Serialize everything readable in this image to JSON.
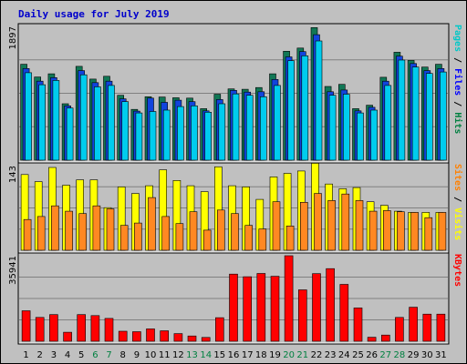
{
  "chart_data": {
    "type": "bar",
    "title": "Daily usage for July 2019",
    "x": [
      "1",
      "2",
      "3",
      "4",
      "5",
      "6",
      "7",
      "8",
      "9",
      "10",
      "11",
      "12",
      "13",
      "14",
      "15",
      "16",
      "17",
      "18",
      "19",
      "20",
      "21",
      "22",
      "23",
      "24",
      "25",
      "26",
      "27",
      "28",
      "29",
      "30",
      "31"
    ],
    "weekend_days": [
      "6",
      "7",
      "13",
      "14",
      "20",
      "21",
      "27",
      "28"
    ],
    "panels": [
      {
        "id": "hits",
        "ymax": 1897,
        "ymax_label": "1897",
        "side_label": [
          {
            "text": "Pages",
            "color": "#00c8c8"
          },
          {
            "text": " / ",
            "color": "#000000"
          },
          {
            "text": "Files",
            "color": "#0000ff"
          },
          {
            "text": " / ",
            "color": "#000000"
          },
          {
            "text": "Hits",
            "color": "#008040"
          }
        ],
        "series": [
          {
            "name": "Hits",
            "color": "#117755",
            "values": [
              1360,
              1180,
              1225,
              800,
              1330,
              1150,
              1190,
              920,
              720,
              900,
              895,
              885,
              880,
              730,
              935,
              1010,
              1005,
              1030,
              1225,
              1545,
              1590,
              1880,
              1045,
              1075,
              730,
              780,
              1175,
              1530,
              1415,
              1320,
              1360
            ]
          },
          {
            "name": "Files",
            "color": "#1144dd",
            "values": [
              1300,
              1120,
              1170,
              770,
              1270,
              1100,
              1120,
              870,
              695,
              880,
              820,
              850,
              830,
              700,
              860,
              990,
              965,
              970,
              1145,
              1465,
              1540,
              1780,
              970,
              995,
              700,
              750,
              1120,
              1475,
              1370,
              1270,
              1300
            ]
          },
          {
            "name": "Pages",
            "color": "#00ccee",
            "values": [
              1240,
              1070,
              1130,
              740,
              1210,
              1040,
              1060,
              830,
              670,
              690,
              710,
              760,
              770,
              680,
              800,
              940,
              920,
              900,
              1060,
              1410,
              1480,
              1690,
              920,
              935,
              670,
              710,
              1060,
              1420,
              1320,
              1230,
              1250
            ]
          }
        ]
      },
      {
        "id": "visits",
        "ymax": 143,
        "ymax_label": "143",
        "side_label": [
          {
            "text": "Sites",
            "color": "#ff8000"
          },
          {
            "text": " / ",
            "color": "#000000"
          },
          {
            "text": "Visits",
            "color": "#ffff00"
          }
        ],
        "series": [
          {
            "name": "Visits",
            "color": "#ffff00",
            "values": [
              128,
              116,
              140,
              110,
              119,
              119,
              72,
              107,
              96,
              109,
              136,
              118,
              109,
              99,
              141,
              109,
              107,
              86,
              124,
              130,
              134,
              147,
              112,
              104,
              106,
              82,
              76,
              66,
              64,
              64,
              64
            ]
          },
          {
            "name": "Sites",
            "color": "#ff8822",
            "values": [
              52,
              57,
              75,
              66,
              62,
              75,
              70,
              42,
              46,
              89,
              57,
              45,
              65,
              34,
              68,
              62,
              42,
              36,
              82,
              41,
              81,
              96,
              84,
              95,
              84,
              66,
              67,
              65,
              64,
              55,
              64
            ]
          }
        ]
      },
      {
        "id": "kbytes",
        "ymax": 35941,
        "ymax_label": "35941",
        "side_label": [
          {
            "text": "KBytes",
            "color": "#ff0000"
          }
        ],
        "series": [
          {
            "name": "KBytes",
            "color": "#ff0000",
            "values": [
              12800,
              10000,
              11200,
              3800,
              11200,
              10800,
              9600,
              4200,
              4000,
              5200,
              4400,
              3200,
              2200,
              1600,
              9900,
              28200,
              27100,
              28500,
              27300,
              35941,
              21600,
              28400,
              30500,
              23900,
              14000,
              1700,
              2600,
              10000,
              14300,
              11400,
              11400
            ]
          }
        ]
      }
    ]
  }
}
